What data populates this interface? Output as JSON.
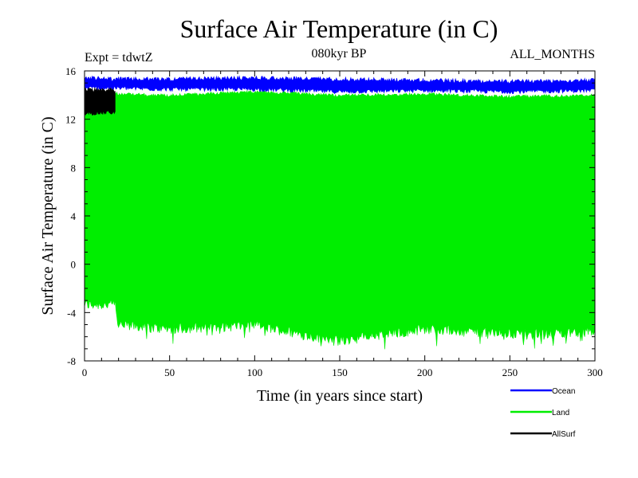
{
  "chart_data": {
    "type": "line",
    "title": "Surface Air Temperature (in C)",
    "subtitle_left": "Expt = tdwtZ",
    "subtitle_center": "080kyr BP",
    "subtitle_right": "ALL_MONTHS",
    "xlabel": "Time (in years since start)",
    "ylabel": "Surface Air Temperature (in C)",
    "xlim": [
      0,
      300
    ],
    "ylim": [
      -8,
      16
    ],
    "xticks": [
      0,
      50,
      100,
      150,
      200,
      250,
      300
    ],
    "yticks": [
      -8,
      -4,
      0,
      4,
      8,
      12,
      16
    ],
    "grid": false,
    "legend_position": "bottom-right",
    "series": [
      {
        "name": "Ocean",
        "color": "#0000ff",
        "values_min_max": [
          [
            0,
            14.4,
            15.6
          ],
          [
            18,
            14.4,
            15.5
          ],
          [
            50,
            14.3,
            15.5
          ],
          [
            100,
            14.3,
            15.6
          ],
          [
            150,
            14.1,
            15.5
          ],
          [
            200,
            14.2,
            15.4
          ],
          [
            250,
            14.1,
            15.3
          ],
          [
            300,
            14.2,
            15.4
          ]
        ]
      },
      {
        "name": "Land",
        "color": "#00ee00",
        "values_min_max": [
          [
            0,
            -3.8,
            14.2
          ],
          [
            18,
            -3.8,
            14.3
          ],
          [
            20,
            -5.5,
            14.2
          ],
          [
            50,
            -5.8,
            14.1
          ],
          [
            100,
            -5.5,
            14.4
          ],
          [
            148,
            -6.8,
            14.1
          ],
          [
            200,
            -5.8,
            14.2
          ],
          [
            250,
            -6.2,
            14.0
          ],
          [
            300,
            -6.0,
            14.1
          ]
        ]
      },
      {
        "name": "AllSurf",
        "color": "#000000",
        "values_min_max": [
          [
            0,
            12.3,
            14.6
          ],
          [
            18,
            12.4,
            14.6
          ]
        ]
      }
    ]
  }
}
